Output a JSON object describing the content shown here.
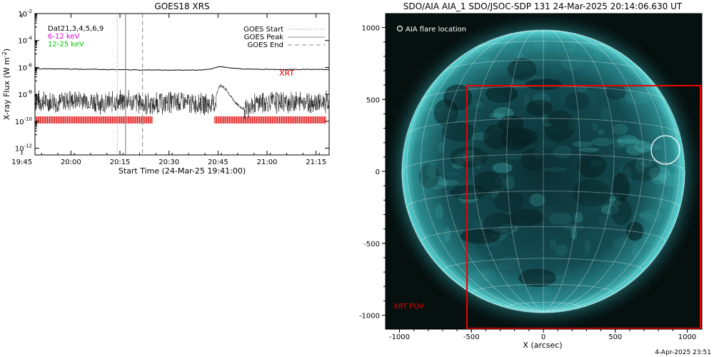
{
  "left_panel": {
    "title": "GOES18 XRS",
    "xlabel": "Start Time (24-Mar-25 19:41:00)",
    "ylabel": "X-ray Flux (W m",
    "ylabel_sup": "-2",
    "ylabel_close": ")",
    "x_ticks": [
      {
        "label": "19:45",
        "min": 4
      },
      {
        "label": "20:00",
        "min": 19
      },
      {
        "label": "20:15",
        "min": 34
      },
      {
        "label": "20:30",
        "min": 49
      },
      {
        "label": "20:45",
        "min": 64
      },
      {
        "label": "21:00",
        "min": 79
      },
      {
        "label": "21:15",
        "min": 94
      }
    ],
    "y_ticks": [
      {
        "base": "10",
        "exp": "-2",
        "log": -2
      },
      {
        "base": "10",
        "exp": "-4",
        "log": -4
      },
      {
        "base": "10",
        "exp": "-6",
        "log": -6
      },
      {
        "base": "10",
        "exp": "-8",
        "log": -8
      },
      {
        "base": "10",
        "exp": "-10",
        "log": -10
      },
      {
        "base": "10",
        "exp": "-12",
        "log": -12
      }
    ],
    "legend_left": [
      {
        "text": "Dat21,3,4,5,6,9",
        "color": "#000000"
      },
      {
        "text": "6-12 keV",
        "color": "#e000e0"
      },
      {
        "text": "12-25 keV",
        "color": "#00cc00"
      }
    ],
    "legend_right": [
      {
        "text": "GOES Start",
        "style": "dotted"
      },
      {
        "text": "GOES Peak",
        "style": "solid"
      },
      {
        "text": "GOES End",
        "style": "dashed"
      }
    ],
    "xrt_label": "XRT",
    "colors": {
      "xrt": "#dd0000",
      "frame": "#000000",
      "vline": "#999999"
    }
  },
  "right_panel": {
    "title": "SDO/AIA AIA_1 SDO/JSOC-SDP 131 24-Mar-2025 20:14:06.630 UT",
    "xlabel": "X (arcsec)",
    "x_ticks": [
      "-1000",
      "-500",
      "0",
      "500",
      "1000"
    ],
    "y_ticks": [
      "1000",
      "500",
      "0",
      "-500",
      "-1000"
    ],
    "flare_legend": "AIA flare location",
    "fov_label": "XRT FOV",
    "colors": {
      "disk": "#1e6f73",
      "disk_edge": "#5fd9d9",
      "grid": "#ffffff",
      "fov": "#ee0000",
      "flare": "#ffffff"
    }
  },
  "footer_date": "4-Apr-2025 23:51",
  "chart_data": [
    {
      "type": "line",
      "title": "GOES18 XRS",
      "xlabel": "Start Time (24-Mar-25 19:41:00)",
      "ylabel": "X-ray Flux (W m-2)",
      "x_unit": "minutes after 19:41:00",
      "xlim": [
        8,
        98
      ],
      "ylim_log10": [
        -12.5,
        -2
      ],
      "y_scale": "log",
      "grid": false,
      "legend_position": "top-right",
      "series": [
        {
          "name": "Dat21,3,4,5,6,9",
          "x": [
            8,
            18,
            28,
            38,
            48,
            58,
            62,
            64,
            66,
            68,
            72,
            80,
            88,
            98
          ],
          "log10_y": [
            -6.1,
            -6.12,
            -6.15,
            -6.18,
            -6.2,
            -6.2,
            -6.12,
            -5.95,
            -5.98,
            -6.05,
            -6.12,
            -6.15,
            -6.15,
            -6.15
          ]
        },
        {
          "name": "",
          "style": "dotted-noise",
          "x": [
            8,
            15,
            22,
            29,
            36,
            43,
            50,
            57,
            63,
            64,
            65,
            66,
            67,
            68,
            70,
            72,
            74,
            80,
            88,
            98
          ],
          "log10_y": [
            -8.3,
            -8.4,
            -8.2,
            -8.5,
            -8.3,
            -8.6,
            -8.4,
            -8.5,
            -8.6,
            -7.6,
            -7.3,
            -7.55,
            -7.8,
            -8.2,
            -8.8,
            -9.1,
            -8.5,
            -8.4,
            -8.4,
            -8.4
          ]
        }
      ],
      "vlines": [
        {
          "name": "GOES Start",
          "x": 33.2,
          "style": "dotted"
        },
        {
          "name": "GOES Peak",
          "x": 35.7,
          "style": "solid"
        },
        {
          "name": "GOES End",
          "x": 40.9,
          "style": "dashed"
        }
      ],
      "xrt_intervals": [
        [
          8,
          44
        ],
        [
          63,
          97
        ]
      ],
      "xrt_log10_y": -9.9
    },
    {
      "type": "heatmap",
      "title": "SDO/AIA AIA_1 SDO/JSOC-SDP 131 24-Mar-2025 20:14:06.630 UT",
      "xlabel": "X (arcsec)",
      "xlim": [
        -1100,
        1100
      ],
      "ylim": [
        -1100,
        1000
      ],
      "solar_radius_arcsec": 982,
      "flare_location": {
        "x": 870,
        "y": 150,
        "r": 100
      },
      "xrt_fov": {
        "x": [
          -525,
          1100
        ],
        "y": [
          -1100,
          592
        ]
      }
    }
  ]
}
